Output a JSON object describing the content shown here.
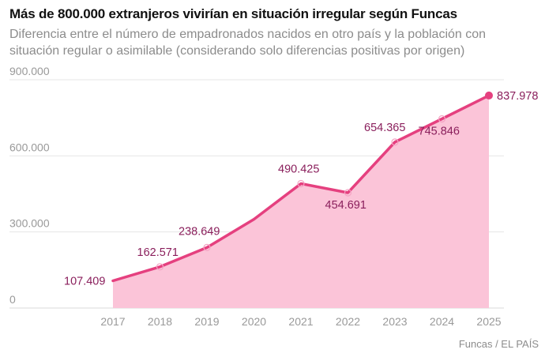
{
  "title": "Más de 800.000 extranjeros vivirían en situación irregular según Funcas",
  "subtitle": "Diferencia entre el número de empadronados nacidos en otro país y la población con situación regular o asimilable (considerando solo diferencias positivas por origen)",
  "source": "Funcas / EL PAÍS",
  "colors": {
    "line": "#e5407f",
    "area": "#fbc4d8",
    "label": "#8a1f5c",
    "grid": "#e6e6e6",
    "tick": "#999999"
  },
  "chart_data": {
    "type": "area",
    "x": [
      "2017",
      "2018",
      "2019",
      "2020",
      "2021",
      "2022",
      "2023",
      "2024",
      "2025"
    ],
    "values": [
      107409,
      162571,
      238649,
      350000,
      490425,
      454691,
      654365,
      745846,
      837978
    ],
    "data_labels": [
      "107.409",
      "162.571",
      "238.649",
      "",
      "490.425",
      "454.691",
      "654.365",
      "745.846",
      "837.978"
    ],
    "yticks": [
      0,
      300000,
      600000,
      900000
    ],
    "ytick_labels": [
      "0",
      "300.000",
      "600.000",
      "900.000"
    ],
    "ylim": [
      0,
      900000
    ],
    "grid": true
  }
}
